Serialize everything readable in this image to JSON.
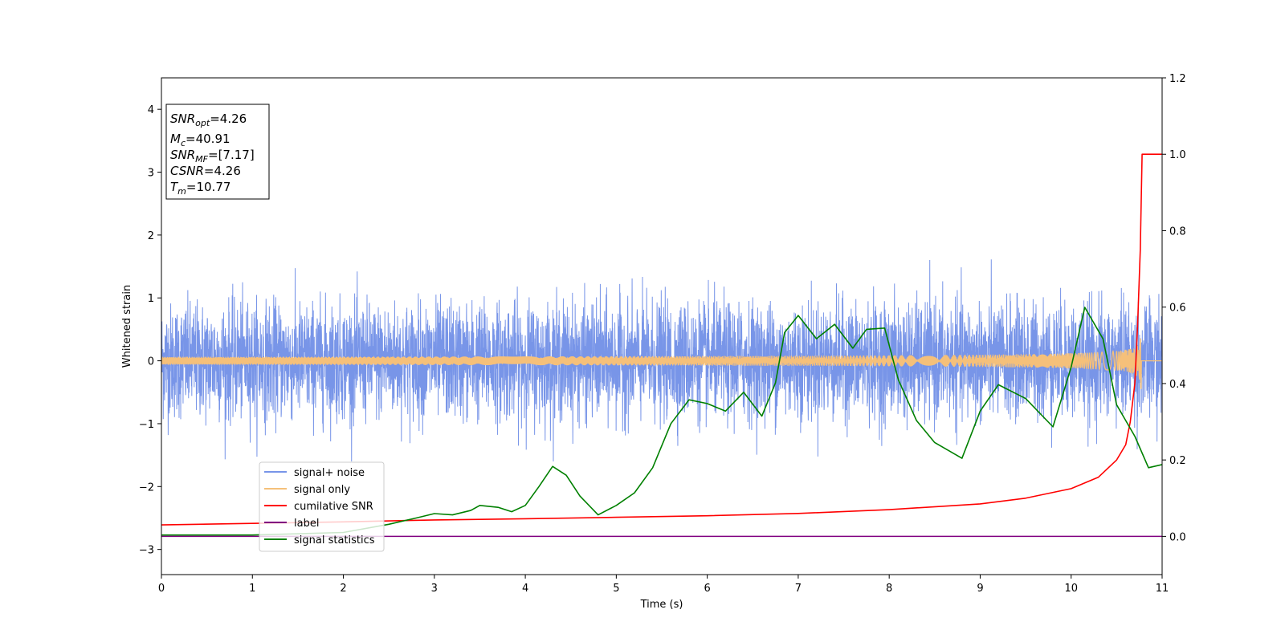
{
  "chart_data": {
    "type": "line",
    "xlabel": "Time (s)",
    "ylabel": "Whitened strain",
    "xlim": [
      0,
      11
    ],
    "ylim": [
      -3.4,
      4.5
    ],
    "y2lim": [
      -0.1,
      1.2
    ],
    "x_ticks": [
      "0",
      "1",
      "2",
      "3",
      "4",
      "5",
      "6",
      "7",
      "8",
      "9",
      "10",
      "11"
    ],
    "y_ticks": [
      "−3",
      "−2",
      "−1",
      "0",
      "1",
      "2",
      "3",
      "4"
    ],
    "y2_ticks": [
      "0.0",
      "0.2",
      "0.4",
      "0.6",
      "0.8",
      "1.0",
      "1.2"
    ],
    "grid": false,
    "legend_position": "lower-left",
    "info_box": {
      "snr_opt": {
        "base": "SNR",
        "sub": "opt",
        "value": "=4.26"
      },
      "mc": {
        "base": "M",
        "sub": "c",
        "value": "=40.91"
      },
      "snr_mf": {
        "base": "SNR",
        "sub": "MF",
        "value": "=[7.17]"
      },
      "csnr": {
        "base": "CSNR",
        "value": "=4.26"
      },
      "tm": {
        "base": "T",
        "sub": "m",
        "value": "=10.77"
      }
    },
    "series": [
      {
        "name": "signal+ noise",
        "color": "#7895e8",
        "axis": "left",
        "kind": "noise",
        "amplitude_sigma": 0.45,
        "typical_range": [
          -1.6,
          1.9
        ]
      },
      {
        "name": "signal only",
        "color": "#f5c07a",
        "axis": "left",
        "kind": "chirp",
        "merger_time": 10.77,
        "peak_amplitude": 0.45
      },
      {
        "name": "cumilative SNR",
        "color": "#ff0000",
        "axis": "right",
        "points": [
          [
            0,
            0.03
          ],
          [
            1,
            0.034
          ],
          [
            2,
            0.038
          ],
          [
            3,
            0.043
          ],
          [
            4,
            0.046
          ],
          [
            5,
            0.05
          ],
          [
            6,
            0.054
          ],
          [
            7,
            0.06
          ],
          [
            8,
            0.07
          ],
          [
            9,
            0.085
          ],
          [
            9.5,
            0.1
          ],
          [
            10,
            0.125
          ],
          [
            10.3,
            0.155
          ],
          [
            10.5,
            0.2
          ],
          [
            10.6,
            0.24
          ],
          [
            10.65,
            0.3
          ],
          [
            10.7,
            0.4
          ],
          [
            10.73,
            0.55
          ],
          [
            10.76,
            0.75
          ],
          [
            10.78,
            1.0
          ],
          [
            11,
            1.0
          ]
        ]
      },
      {
        "name": "label",
        "color": "#800080",
        "axis": "right",
        "points": [
          [
            0,
            0.0
          ],
          [
            11,
            0.0
          ]
        ]
      },
      {
        "name": "signal statistics",
        "color": "#008000",
        "axis": "left",
        "points": [
          [
            0,
            -2.77
          ],
          [
            1,
            -2.77
          ],
          [
            2,
            -2.73
          ],
          [
            2.5,
            -2.6
          ],
          [
            2.8,
            -2.5
          ],
          [
            3,
            -2.43
          ],
          [
            3.2,
            -2.45
          ],
          [
            3.4,
            -2.38
          ],
          [
            3.5,
            -2.3
          ],
          [
            3.7,
            -2.33
          ],
          [
            3.85,
            -2.4
          ],
          [
            4,
            -2.3
          ],
          [
            4.15,
            -2.0
          ],
          [
            4.3,
            -1.68
          ],
          [
            4.45,
            -1.82
          ],
          [
            4.6,
            -2.15
          ],
          [
            4.8,
            -2.45
          ],
          [
            5.0,
            -2.3
          ],
          [
            5.2,
            -2.1
          ],
          [
            5.4,
            -1.7
          ],
          [
            5.6,
            -1.0
          ],
          [
            5.8,
            -0.62
          ],
          [
            6.0,
            -0.68
          ],
          [
            6.2,
            -0.8
          ],
          [
            6.4,
            -0.5
          ],
          [
            6.6,
            -0.88
          ],
          [
            6.75,
            -0.35
          ],
          [
            6.85,
            0.45
          ],
          [
            7.0,
            0.72
          ],
          [
            7.2,
            0.35
          ],
          [
            7.4,
            0.58
          ],
          [
            7.6,
            0.2
          ],
          [
            7.75,
            0.5
          ],
          [
            7.95,
            0.52
          ],
          [
            8.1,
            -0.3
          ],
          [
            8.3,
            -0.95
          ],
          [
            8.5,
            -1.3
          ],
          [
            8.8,
            -1.55
          ],
          [
            9.0,
            -0.8
          ],
          [
            9.2,
            -0.38
          ],
          [
            9.5,
            -0.6
          ],
          [
            9.8,
            -1.05
          ],
          [
            10.0,
            -0.1
          ],
          [
            10.15,
            0.85
          ],
          [
            10.35,
            0.35
          ],
          [
            10.5,
            -0.7
          ],
          [
            10.7,
            -1.2
          ],
          [
            10.85,
            -1.7
          ],
          [
            11,
            -1.65
          ]
        ]
      }
    ]
  }
}
